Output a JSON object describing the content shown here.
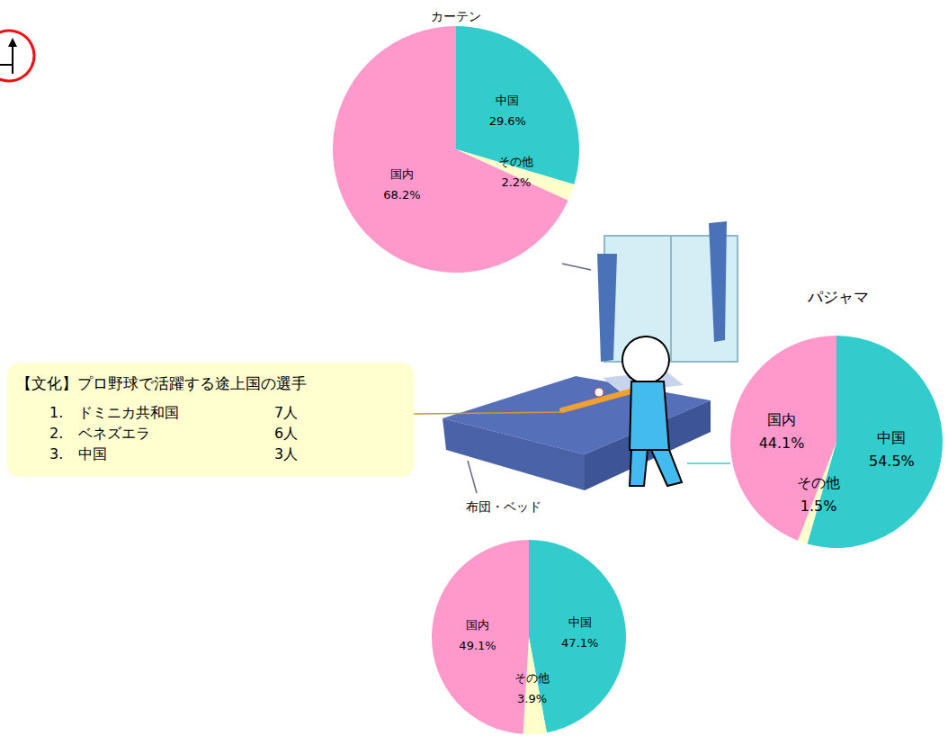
{
  "chart_data": [
    {
      "type": "pie",
      "title": "カーテン",
      "categories": [
        "中国",
        "その他",
        "国内"
      ],
      "values": [
        29.6,
        2.2,
        68.2
      ],
      "value_labels": [
        "29.6%",
        "2.2%",
        "68.2%"
      ],
      "colors": [
        "#33cccc",
        "#ffffcc",
        "#ff99cc"
      ],
      "data_labels": true
    },
    {
      "type": "pie",
      "title": "パジャマ",
      "categories": [
        "中国",
        "その他",
        "国内"
      ],
      "values": [
        54.5,
        1.5,
        44.1
      ],
      "value_labels": [
        "54.5%",
        "1.5%",
        "44.1%"
      ],
      "colors": [
        "#33cccc",
        "#ffffcc",
        "#ff99cc"
      ],
      "data_labels": true
    },
    {
      "type": "pie",
      "title": "布団・ベッド",
      "categories": [
        "中国",
        "その他",
        "国内"
      ],
      "values": [
        47.1,
        3.9,
        49.1
      ],
      "value_labels": [
        "47.1%",
        "3.9%",
        "49.1%"
      ],
      "colors": [
        "#33cccc",
        "#ffffcc",
        "#ff99cc"
      ],
      "data_labels": true
    }
  ],
  "annotation": {
    "title": "【文化】プロ野球で活躍する途上国の選手",
    "rows": [
      [
        "1.",
        "ドミニカ共和国",
        "7人"
      ],
      [
        "2.",
        "ベネズエラ",
        "6人"
      ],
      [
        "3.",
        "中国",
        "3人"
      ]
    ]
  }
}
